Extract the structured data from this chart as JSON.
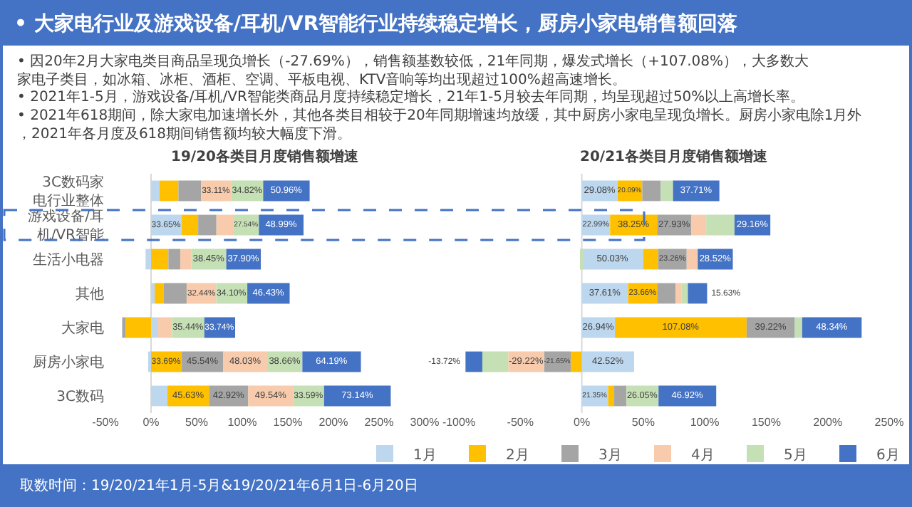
{
  "chart_data": [
    {
      "type": "bar",
      "orientation": "horizontal",
      "stacked": true,
      "title": "19/20各类目月度销售额增速",
      "legend": "bottom",
      "grid": false,
      "categories": [
        "3C数码家电行业整体",
        "游戏设备/耳机/VR智能",
        "生活小电器",
        "其他",
        "大家电",
        "厨房小家电",
        "3C数码"
      ],
      "ref_lines": [
        {
          "axis": "x",
          "value": 0,
          "color": "#d9d9d9"
        }
      ],
      "xlim": [
        -50,
        300
      ],
      "xticks": [
        {
          "value": -50,
          "label": "-50%"
        },
        {
          "value": 0,
          "label": "0%"
        },
        {
          "value": 50,
          "label": "50%"
        },
        {
          "value": 100,
          "label": "100%"
        },
        {
          "value": 150,
          "label": "150%"
        },
        {
          "value": 200,
          "label": "200%"
        },
        {
          "value": 250,
          "label": "250%"
        },
        {
          "value": 300,
          "label": "300%"
        }
      ],
      "series": [
        {
          "name": "1月",
          "color": "#bdd7ee",
          "values": [
            9,
            33.65,
            -6,
            4,
            7,
            -3,
            18
          ],
          "value_labels": [
            null,
            "33.65%",
            null,
            null,
            null,
            null,
            null
          ]
        },
        {
          "name": "2月",
          "color": "#ffc000",
          "values": [
            21,
            18,
            19,
            10,
            -27.69,
            33.69,
            45.63
          ],
          "value_labels": [
            null,
            null,
            null,
            null,
            null,
            "33.69%",
            "45.63%"
          ]
        },
        {
          "name": "3月",
          "color": "#a5a5a5",
          "values": [
            25,
            20,
            13,
            25,
            -4,
            45.54,
            42.92
          ],
          "value_labels": [
            null,
            null,
            null,
            null,
            null,
            "45.54%",
            "42.92%"
          ]
        },
        {
          "name": "4月",
          "color": "#f8cbad",
          "values": [
            33.11,
            19,
            12,
            32.44,
            16,
            48.03,
            49.54
          ],
          "value_labels": [
            "33.11%",
            null,
            null,
            "32.44%",
            null,
            "48.03%",
            "49.54%"
          ]
        },
        {
          "name": "5月",
          "color": "#c5e0b4",
          "values": [
            34.82,
            27.54,
            38.45,
            34.1,
            35.44,
            38.66,
            33.59
          ],
          "value_labels": [
            "34.82%",
            "27.54%",
            "38.45%",
            "34.10%",
            "35.44%",
            "38.66%",
            "33.59%"
          ]
        },
        {
          "name": "6月",
          "color": "#4472c4",
          "values": [
            50.96,
            48.99,
            37.9,
            46.43,
            33.74,
            64.19,
            73.14
          ],
          "value_labels": [
            "50.96%",
            "48.99%",
            "37.90%",
            "46.43%",
            "33.74%",
            "64.19%",
            "73.14%"
          ]
        }
      ],
      "annotations": [
        "• 大家电行业及游戏设备/耳机/VR智能行业持续稳定增长，厨房小家电销售额回落",
        "• 因20年2月大家电类目商品呈现负增长（-27.69%），销售额基数较低，21年同期，爆发式增长（+107.08%），大多数大家电子类目，如冰箱、冰柜、酒柜、空调、平板电视、KTV音响等均出现超过100%超高速增长。",
        "• 2021年1-5月，游戏设备/耳机/VR智能类商品月度持续稳定增长，21年1-5月较去年同期，均呈现超过50%以上高增长率。",
        "• 2021年618期间，除大家电加速增长外，其他各类目相较于20年同期增速均放缓，其中厨房小家电呈现负增长。厨房小家电除1月外，2021年各月度及618期间销售额均较大幅度下滑。"
      ]
    },
    {
      "type": "bar",
      "orientation": "horizontal",
      "stacked": true,
      "title": "20/21各类目月度销售额增速",
      "legend": "bottom",
      "grid": false,
      "tick_labels": "x",
      "categories": [
        "3C数码家电行业整体",
        "游戏设备/耳机/VR智能",
        "生活小电器",
        "其他",
        "大家电",
        "厨房小家电",
        "3C数码"
      ],
      "ref_lines": [
        {
          "axis": "x",
          "value": 0,
          "color": "#d9d9d9"
        }
      ],
      "xlim": [
        -100,
        250
      ],
      "xticks": [
        {
          "value": -100,
          "label": "-100%"
        },
        {
          "value": -50,
          "label": "-50%"
        },
        {
          "value": 0,
          "label": "0%"
        },
        {
          "value": 50,
          "label": "50%"
        },
        {
          "value": 100,
          "label": "100%"
        },
        {
          "value": 150,
          "label": "150%"
        },
        {
          "value": 200,
          "label": "200%"
        },
        {
          "value": 250,
          "label": "250%"
        }
      ],
      "series": [
        {
          "name": "1月",
          "color": "#bdd7ee",
          "values": [
            29.08,
            22.99,
            50.03,
            37.61,
            26.94,
            42.52,
            21.35
          ],
          "value_labels": [
            "29.08%",
            "22.99%",
            "50.03%",
            "37.61%",
            "26.94%",
            "42.52%",
            "21.35%"
          ]
        },
        {
          "name": "2月",
          "color": "#ffc000",
          "values": [
            20.09,
            38.25,
            12,
            23.66,
            107.08,
            -9,
            5
          ],
          "value_labels": [
            "20.09%",
            "38.25%",
            null,
            "23.66%",
            "107.08%",
            null,
            null
          ]
        },
        {
          "name": "3月",
          "color": "#a5a5a5",
          "values": [
            15,
            27.93,
            23.26,
            15,
            39.22,
            -21.65,
            10
          ],
          "value_labels": [
            null,
            "27.93%",
            "23.26%",
            null,
            "39.22%",
            "-21.65%",
            null
          ]
        },
        {
          "name": "4月",
          "color": "#f8cbad",
          "values": [
            0,
            12,
            9,
            5,
            0,
            -29.22,
            0
          ],
          "value_labels": [
            null,
            null,
            null,
            null,
            null,
            "-29.22%",
            null
          ]
        },
        {
          "name": "5月",
          "color": "#c5e0b4",
          "values": [
            10,
            23,
            -1,
            5,
            6,
            -21,
            26.05
          ],
          "value_labels": [
            null,
            null,
            null,
            null,
            null,
            null,
            "26.05%"
          ]
        },
        {
          "name": "6月",
          "color": "#4472c4",
          "values": [
            37.71,
            29.16,
            28.52,
            15.63,
            48.34,
            -13.72,
            46.92
          ],
          "value_labels": [
            "37.71%",
            "29.16%",
            "28.52%",
            "15.63%",
            "48.34%",
            "-13.72%",
            "46.92%"
          ]
        }
      ],
      "annotations": [
        "取数时间：19/20/21年1月-5月&19/20/21年6月1日-6月20日"
      ]
    }
  ]
}
